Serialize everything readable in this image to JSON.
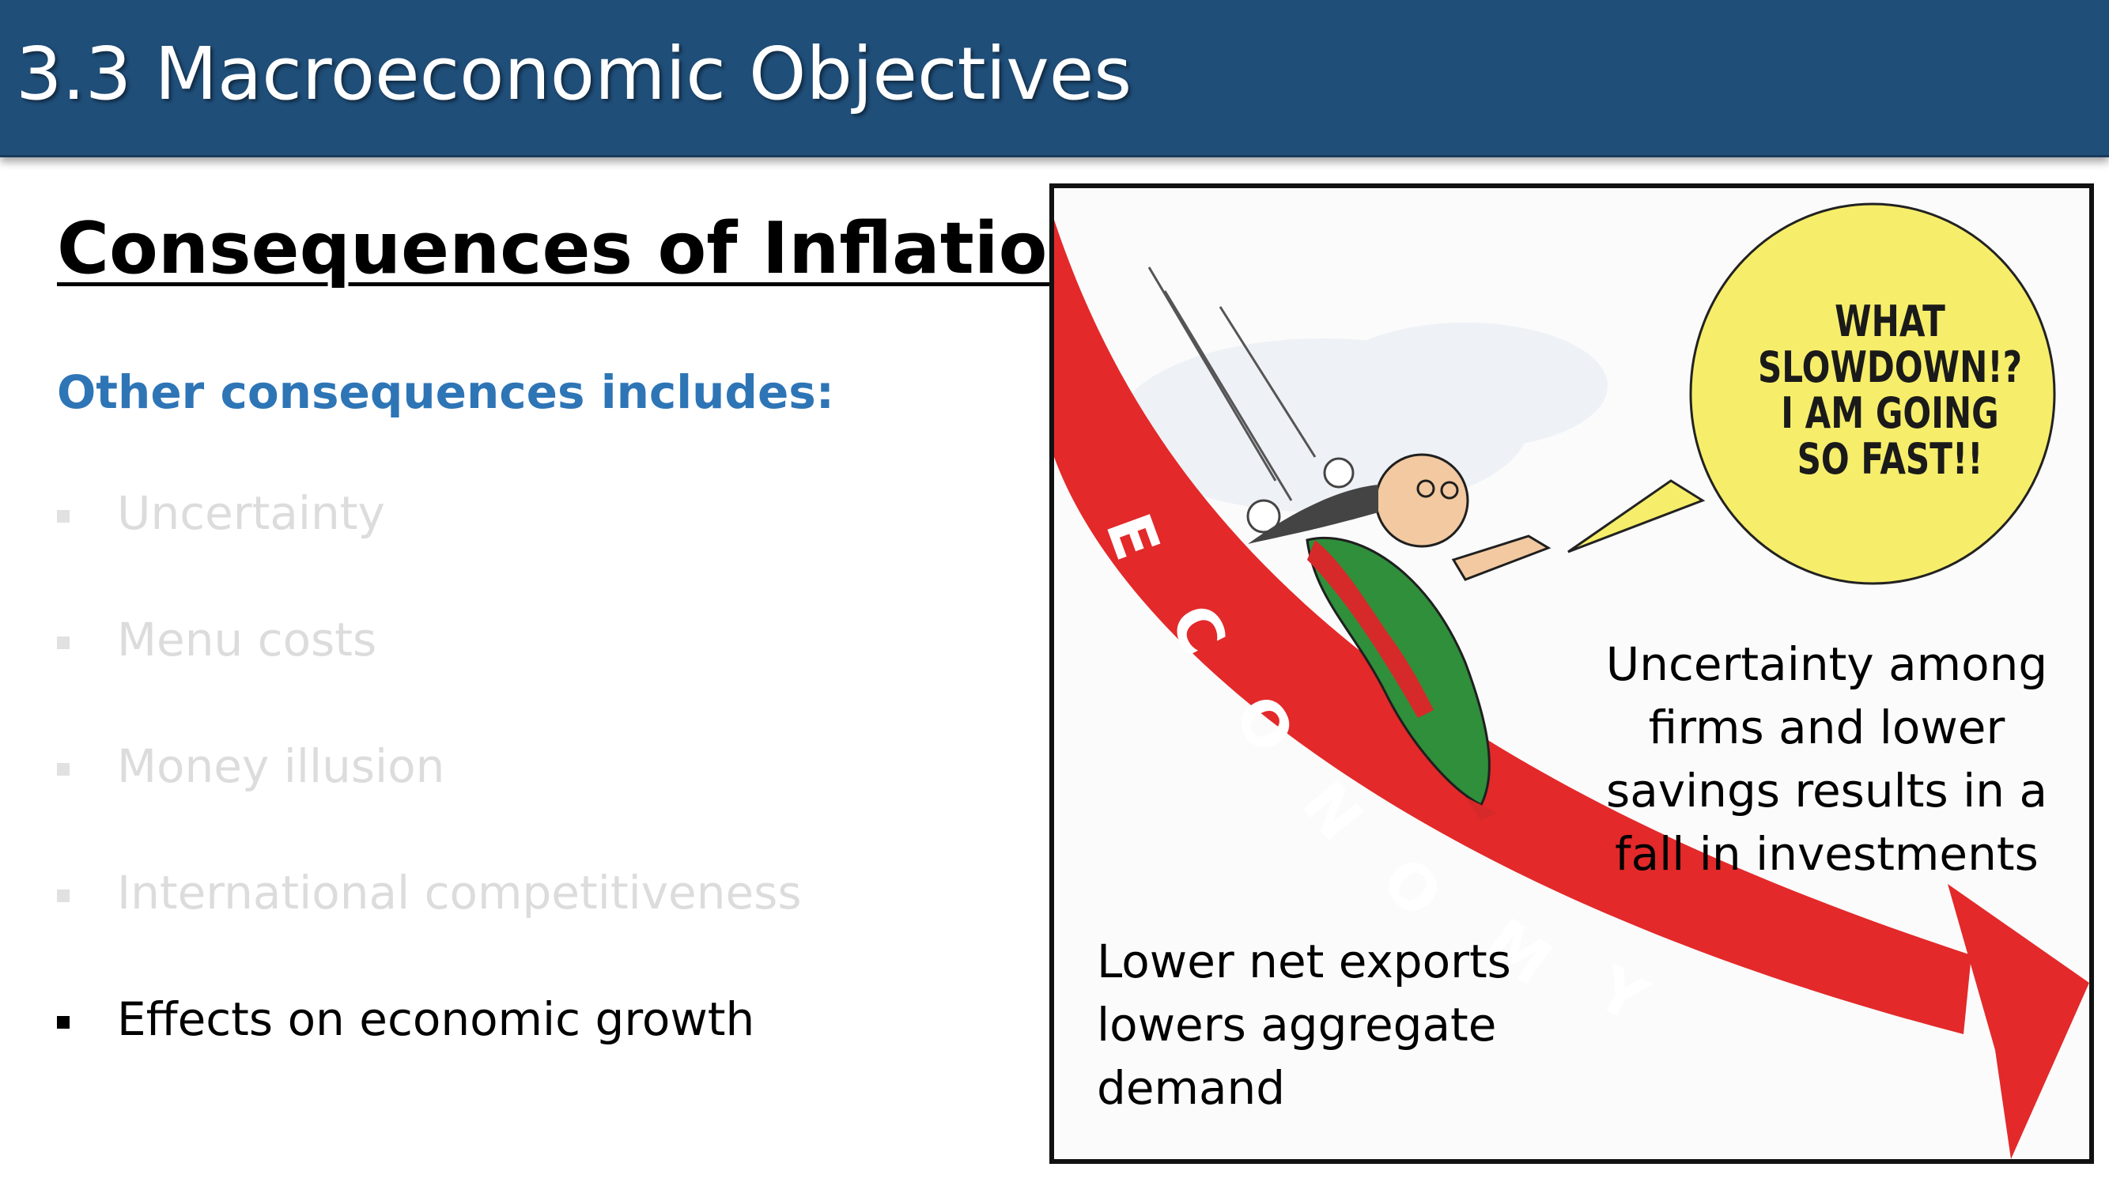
{
  "header": {
    "title": "3.3 Macroeconomic Objectives"
  },
  "slide": {
    "title": "Consequences of Inflation",
    "subtitle": "Other consequences includes:",
    "bullets": [
      {
        "label": "Uncertainty",
        "state": "faded"
      },
      {
        "label": "Menu costs",
        "state": "faded"
      },
      {
        "label": "Money illusion",
        "state": "faded"
      },
      {
        "label": "International competitiveness",
        "state": "faded"
      },
      {
        "label": "Effects on economic growth",
        "state": "active"
      }
    ]
  },
  "cartoon": {
    "arrow_letters": [
      "E",
      "C",
      "O",
      "N",
      "O",
      "M",
      "Y"
    ],
    "speech_lines": [
      "WHAT",
      "SLOWDOWN!?",
      "I AM GOING",
      "SO FAST!!"
    ],
    "arrow_color": "#e3292a",
    "bubble_color": "#f6ee6a",
    "note_right": "Uncertainty among firms and lower savings results in a fall in investments",
    "note_left": "Lower net exports lowers aggregate demand"
  },
  "colors": {
    "header_bg": "#1f4e79",
    "subtitle": "#2e75b6",
    "faded_text": "#dcdcdc"
  }
}
